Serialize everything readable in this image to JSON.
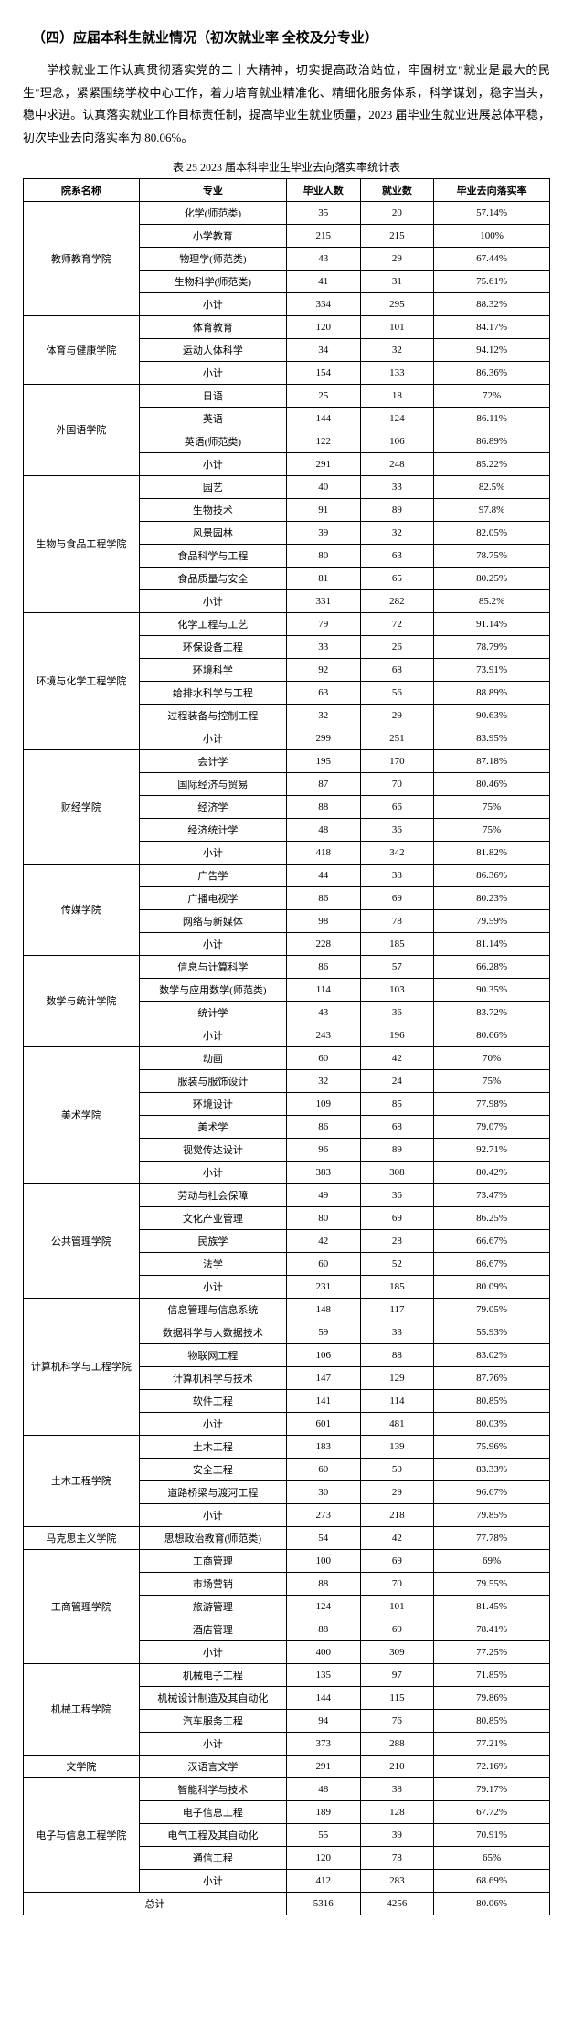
{
  "section_title": "（四）应届本科生就业情况（初次就业率 全校及分专业）",
  "paragraph": "学校就业工作认真贯彻落实党的二十大精神，切实提高政治站位，牢固树立\"就业是最大的民生\"理念，紧紧围绕学校中心工作，着力培育就业精准化、精细化服务体系，科学谋划，稳字当头，稳中求进。认真落实就业工作目标责任制，提高毕业生就业质量，2023 届毕业生就业进展总体平稳，初次毕业去向落实率为 80.06%。",
  "table_caption": "表 25  2023 届本科毕业生毕业去向落实率统计表",
  "columns": [
    "院系名称",
    "专业",
    "毕业人数",
    "就业数",
    "毕业去向落实率"
  ],
  "groups": [
    {
      "dept": "教师教育学院",
      "rows": [
        [
          "化学(师范类)",
          "35",
          "20",
          "57.14%"
        ],
        [
          "小学教育",
          "215",
          "215",
          "100%"
        ],
        [
          "物理学(师范类)",
          "43",
          "29",
          "67.44%"
        ],
        [
          "生物科学(师范类)",
          "41",
          "31",
          "75.61%"
        ],
        [
          "小计",
          "334",
          "295",
          "88.32%"
        ]
      ]
    },
    {
      "dept": "体育与健康学院",
      "rows": [
        [
          "体育教育",
          "120",
          "101",
          "84.17%"
        ],
        [
          "运动人体科学",
          "34",
          "32",
          "94.12%"
        ],
        [
          "小计",
          "154",
          "133",
          "86.36%"
        ]
      ]
    },
    {
      "dept": "外国语学院",
      "rows": [
        [
          "日语",
          "25",
          "18",
          "72%"
        ],
        [
          "英语",
          "144",
          "124",
          "86.11%"
        ],
        [
          "英语(师范类)",
          "122",
          "106",
          "86.89%"
        ],
        [
          "小计",
          "291",
          "248",
          "85.22%"
        ]
      ]
    },
    {
      "dept": "生物与食品工程学院",
      "rows": [
        [
          "园艺",
          "40",
          "33",
          "82.5%"
        ],
        [
          "生物技术",
          "91",
          "89",
          "97.8%"
        ],
        [
          "风景园林",
          "39",
          "32",
          "82.05%"
        ],
        [
          "食品科学与工程",
          "80",
          "63",
          "78.75%"
        ],
        [
          "食品质量与安全",
          "81",
          "65",
          "80.25%"
        ],
        [
          "小计",
          "331",
          "282",
          "85.2%"
        ]
      ]
    },
    {
      "dept": "环境与化学工程学院",
      "rows": [
        [
          "化学工程与工艺",
          "79",
          "72",
          "91.14%"
        ],
        [
          "环保设备工程",
          "33",
          "26",
          "78.79%"
        ],
        [
          "环境科学",
          "92",
          "68",
          "73.91%"
        ],
        [
          "给排水科学与工程",
          "63",
          "56",
          "88.89%"
        ],
        [
          "过程装备与控制工程",
          "32",
          "29",
          "90.63%"
        ],
        [
          "小计",
          "299",
          "251",
          "83.95%"
        ]
      ]
    },
    {
      "dept": "财经学院",
      "rows": [
        [
          "会计学",
          "195",
          "170",
          "87.18%"
        ],
        [
          "国际经济与贸易",
          "87",
          "70",
          "80.46%"
        ],
        [
          "经济学",
          "88",
          "66",
          "75%"
        ],
        [
          "经济统计学",
          "48",
          "36",
          "75%"
        ],
        [
          "小计",
          "418",
          "342",
          "81.82%"
        ]
      ]
    },
    {
      "dept": "传媒学院",
      "rows": [
        [
          "广告学",
          "44",
          "38",
          "86.36%"
        ],
        [
          "广播电视学",
          "86",
          "69",
          "80.23%"
        ],
        [
          "网络与新媒体",
          "98",
          "78",
          "79.59%"
        ],
        [
          "小计",
          "228",
          "185",
          "81.14%"
        ]
      ]
    },
    {
      "dept": "数学与统计学院",
      "rows": [
        [
          "信息与计算科学",
          "86",
          "57",
          "66.28%"
        ],
        [
          "数学与应用数学(师范类)",
          "114",
          "103",
          "90.35%"
        ],
        [
          "统计学",
          "43",
          "36",
          "83.72%"
        ],
        [
          "小计",
          "243",
          "196",
          "80.66%"
        ]
      ]
    },
    {
      "dept": "美术学院",
      "rows": [
        [
          "动画",
          "60",
          "42",
          "70%"
        ],
        [
          "服装与服饰设计",
          "32",
          "24",
          "75%"
        ],
        [
          "环境设计",
          "109",
          "85",
          "77.98%"
        ],
        [
          "美术学",
          "86",
          "68",
          "79.07%"
        ],
        [
          "视觉传达设计",
          "96",
          "89",
          "92.71%"
        ],
        [
          "小计",
          "383",
          "308",
          "80.42%"
        ]
      ]
    },
    {
      "dept": "公共管理学院",
      "rows": [
        [
          "劳动与社会保障",
          "49",
          "36",
          "73.47%"
        ],
        [
          "文化产业管理",
          "80",
          "69",
          "86.25%"
        ],
        [
          "民族学",
          "42",
          "28",
          "66.67%"
        ],
        [
          "法学",
          "60",
          "52",
          "86.67%"
        ],
        [
          "小计",
          "231",
          "185",
          "80.09%"
        ]
      ]
    },
    {
      "dept": "计算机科学与工程学院",
      "rows": [
        [
          "信息管理与信息系统",
          "148",
          "117",
          "79.05%"
        ],
        [
          "数据科学与大数据技术",
          "59",
          "33",
          "55.93%"
        ],
        [
          "物联网工程",
          "106",
          "88",
          "83.02%"
        ],
        [
          "计算机科学与技术",
          "147",
          "129",
          "87.76%"
        ],
        [
          "软件工程",
          "141",
          "114",
          "80.85%"
        ],
        [
          "小计",
          "601",
          "481",
          "80.03%"
        ]
      ]
    },
    {
      "dept": "土木工程学院",
      "rows": [
        [
          "土木工程",
          "183",
          "139",
          "75.96%"
        ],
        [
          "安全工程",
          "60",
          "50",
          "83.33%"
        ],
        [
          "道路桥梁与渡河工程",
          "30",
          "29",
          "96.67%"
        ],
        [
          "小计",
          "273",
          "218",
          "79.85%"
        ]
      ]
    },
    {
      "dept": "马克思主义学院",
      "rows": [
        [
          "思想政治教育(师范类)",
          "54",
          "42",
          "77.78%"
        ]
      ]
    },
    {
      "dept": "工商管理学院",
      "rows": [
        [
          "工商管理",
          "100",
          "69",
          "69%"
        ],
        [
          "市场营销",
          "88",
          "70",
          "79.55%"
        ],
        [
          "旅游管理",
          "124",
          "101",
          "81.45%"
        ],
        [
          "酒店管理",
          "88",
          "69",
          "78.41%"
        ],
        [
          "小计",
          "400",
          "309",
          "77.25%"
        ]
      ]
    },
    {
      "dept": "机械工程学院",
      "rows": [
        [
          "机械电子工程",
          "135",
          "97",
          "71.85%"
        ],
        [
          "机械设计制造及其自动化",
          "144",
          "115",
          "79.86%"
        ],
        [
          "汽车服务工程",
          "94",
          "76",
          "80.85%"
        ],
        [
          "小计",
          "373",
          "288",
          "77.21%"
        ]
      ]
    },
    {
      "dept": "文学院",
      "rows": [
        [
          "汉语言文学",
          "291",
          "210",
          "72.16%"
        ]
      ]
    },
    {
      "dept": "电子与信息工程学院",
      "rows": [
        [
          "智能科学与技术",
          "48",
          "38",
          "79.17%"
        ],
        [
          "电子信息工程",
          "189",
          "128",
          "67.72%"
        ],
        [
          "电气工程及其自动化",
          "55",
          "39",
          "70.91%"
        ],
        [
          "通信工程",
          "120",
          "78",
          "65%"
        ],
        [
          "小计",
          "412",
          "283",
          "68.69%"
        ]
      ]
    }
  ],
  "total_label": "总计",
  "total": [
    "5316",
    "4256",
    "80.06%"
  ]
}
